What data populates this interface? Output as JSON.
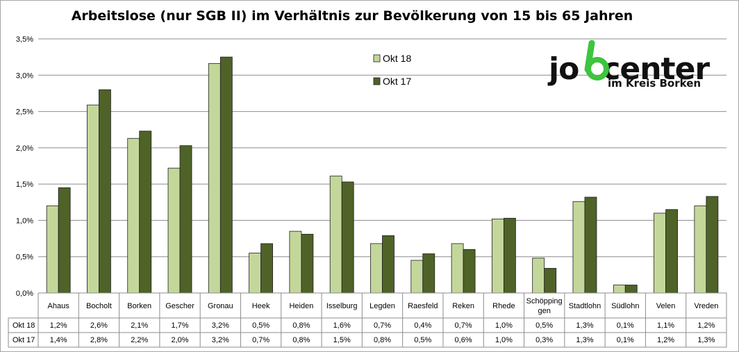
{
  "chart_data": {
    "type": "bar",
    "title": "Arbeitslose (nur SGB II) im Verhältnis zur Bevölkerung von 15 bis 65 Jahren",
    "categories": [
      "Ahaus",
      "Bocholt",
      "Borken",
      "Gescher",
      "Gronau",
      "Heek",
      "Heiden",
      "Isselburg",
      "Legden",
      "Raesfeld",
      "Reken",
      "Rhede",
      "Schöpping gen",
      "Stadtlohn",
      "Südlohn",
      "Velen",
      "Vreden"
    ],
    "category_lines": [
      [
        "Ahaus"
      ],
      [
        "Bocholt"
      ],
      [
        "Borken"
      ],
      [
        "Gescher"
      ],
      [
        "Gronau"
      ],
      [
        "Heek"
      ],
      [
        "Heiden"
      ],
      [
        "Isselburg"
      ],
      [
        "Legden"
      ],
      [
        "Raesfeld"
      ],
      [
        "Reken"
      ],
      [
        "Rhede"
      ],
      [
        "Schöpping",
        "gen"
      ],
      [
        "Stadtlohn"
      ],
      [
        "Südlohn"
      ],
      [
        "Velen"
      ],
      [
        "Vreden"
      ]
    ],
    "series": [
      {
        "name": "Okt 18",
        "color": "#c4d79b",
        "values": [
          1.2,
          2.59,
          2.13,
          1.72,
          3.16,
          0.55,
          0.85,
          1.61,
          0.68,
          0.45,
          0.68,
          1.02,
          0.48,
          1.26,
          0.11,
          1.1,
          1.2
        ],
        "labels": [
          "1,2%",
          "2,6%",
          "2,1%",
          "1,7%",
          "3,2%",
          "0,5%",
          "0,8%",
          "1,6%",
          "0,7%",
          "0,4%",
          "0,7%",
          "1,0%",
          "0,5%",
          "1,3%",
          "0,1%",
          "1,1%",
          "1,2%"
        ]
      },
      {
        "name": "Okt 17",
        "color": "#4f6228",
        "values": [
          1.45,
          2.8,
          2.23,
          2.03,
          3.25,
          0.68,
          0.81,
          1.53,
          0.79,
          0.54,
          0.6,
          1.03,
          0.34,
          1.32,
          0.11,
          1.15,
          1.33
        ],
        "labels": [
          "1,4%",
          "2,8%",
          "2,2%",
          "2,0%",
          "3,2%",
          "0,7%",
          "0,8%",
          "1,5%",
          "0,8%",
          "0,5%",
          "0,6%",
          "1,0%",
          "0,3%",
          "1,3%",
          "0,1%",
          "1,2%",
          "1,3%"
        ]
      }
    ],
    "ylim": [
      0,
      3.5
    ],
    "yticks": [
      "0,0%",
      "0,5%",
      "1,0%",
      "1,5%",
      "2,0%",
      "2,5%",
      "3,0%",
      "3,5%"
    ],
    "grid": true,
    "legend_position": "top-center",
    "xlabel": "",
    "ylabel": ""
  },
  "logo": {
    "text_part1": "jo",
    "text_part2": "center",
    "subtitle": "im Kreis Borken",
    "accent": "#3ec43e"
  }
}
